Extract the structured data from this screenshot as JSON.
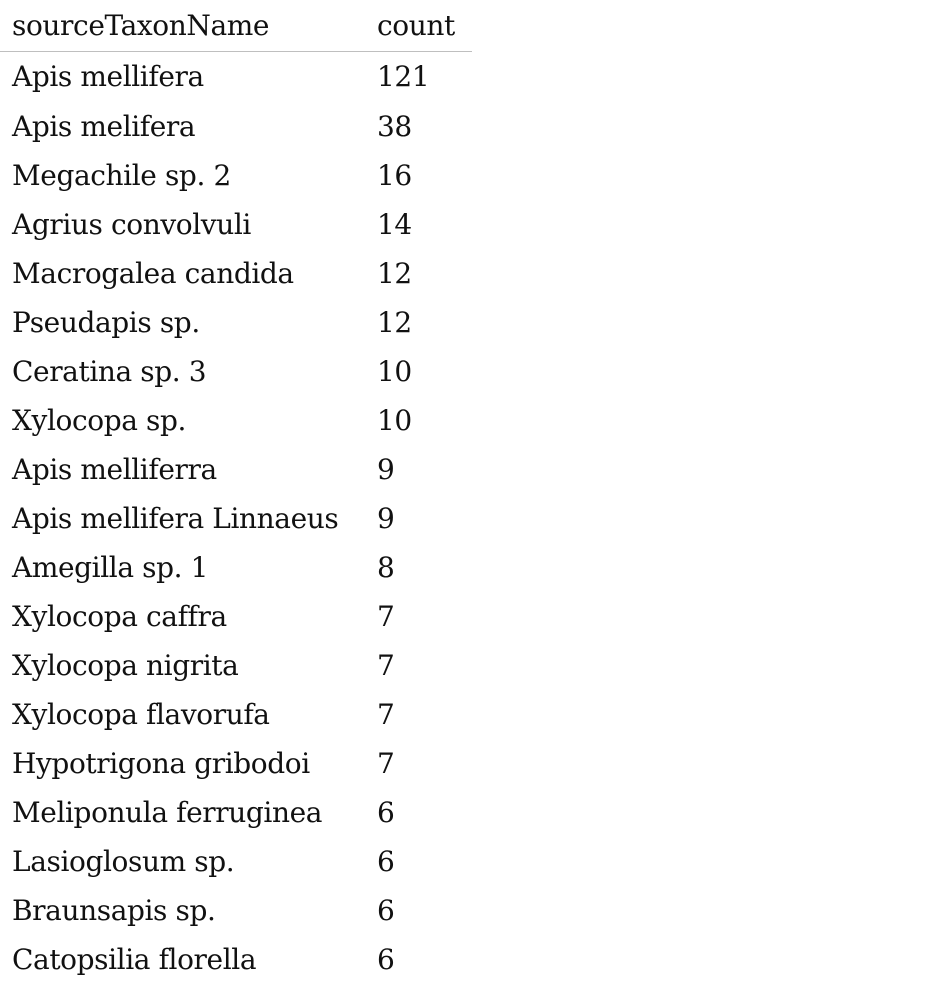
{
  "table": {
    "columns": [
      "sourceTaxonName",
      "count"
    ],
    "rows": [
      {
        "name": "Apis mellifera",
        "count": "121"
      },
      {
        "name": "Apis melifera",
        "count": "38"
      },
      {
        "name": "Megachile sp. 2",
        "count": "16"
      },
      {
        "name": "Agrius convolvuli",
        "count": "14"
      },
      {
        "name": "Macrogalea candida",
        "count": "12"
      },
      {
        "name": "Pseudapis sp.",
        "count": "12"
      },
      {
        "name": "Ceratina sp. 3",
        "count": "10"
      },
      {
        "name": "Xylocopa sp.",
        "count": "10"
      },
      {
        "name": "Apis melliferra",
        "count": "9"
      },
      {
        "name": "Apis mellifera Linnaeus",
        "count": "9"
      },
      {
        "name": "Amegilla sp. 1",
        "count": "8"
      },
      {
        "name": "Xylocopa caffra",
        "count": "7"
      },
      {
        "name": "Xylocopa nigrita",
        "count": "7"
      },
      {
        "name": "Xylocopa flavorufa",
        "count": "7"
      },
      {
        "name": "Hypotrigona gribodoi",
        "count": "7"
      },
      {
        "name": "Meliponula ferruginea",
        "count": "6"
      },
      {
        "name": "Lasioglosum sp.",
        "count": "6"
      },
      {
        "name": "Braunsapis sp.",
        "count": "6"
      },
      {
        "name": "Catopsilia florella",
        "count": "6"
      }
    ]
  }
}
